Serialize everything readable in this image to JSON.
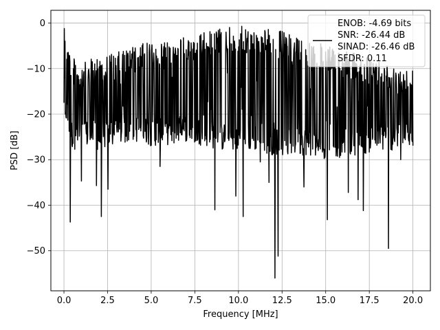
{
  "chart_data": {
    "type": "line",
    "xlabel": "Frequency [MHz]",
    "ylabel": "PSD [dB]",
    "xlim": [
      -0.75,
      21.0
    ],
    "ylim": [
      -58.8,
      2.8
    ],
    "xticks": [
      0.0,
      2.5,
      5.0,
      7.5,
      10.0,
      12.5,
      15.0,
      17.5,
      20.0
    ],
    "xtick_labels": [
      "0.0",
      "2.5",
      "5.0",
      "7.5",
      "10.0",
      "12.5",
      "15.0",
      "17.5",
      "20.0"
    ],
    "yticks": [
      0,
      -10,
      -20,
      -30,
      -40,
      -50
    ],
    "ytick_labels": [
      "0",
      "−10",
      "−20",
      "−30",
      "−40",
      "−50"
    ],
    "grid": true,
    "legend_position": "top-right",
    "series": [
      {
        "name": "",
        "color": "#000000",
        "description_points": {
          "x_range": [
            0.0,
            20.0
          ],
          "points_count": 1000,
          "upper_envelope": [
            [
              0.0,
              -1.2
            ],
            [
              0.5,
              -7.5
            ],
            [
              1.0,
              -9.0
            ],
            [
              2.0,
              -7.0
            ],
            [
              3.0,
              -6.5
            ],
            [
              4.0,
              -5.0
            ],
            [
              5.0,
              -4.0
            ],
            [
              6.0,
              -3.5
            ],
            [
              7.0,
              -3.0
            ],
            [
              8.0,
              -2.0
            ],
            [
              9.0,
              -1.0
            ],
            [
              10.0,
              -0.5
            ],
            [
              11.0,
              -1.5
            ],
            [
              12.0,
              -1.0
            ],
            [
              13.0,
              -2.5
            ],
            [
              14.0,
              -3.0
            ],
            [
              15.0,
              -5.0
            ],
            [
              16.0,
              -6.0
            ],
            [
              17.0,
              -7.0
            ],
            [
              18.0,
              -8.0
            ],
            [
              19.0,
              -9.5
            ],
            [
              20.0,
              -10.0
            ]
          ],
          "lower_envelope": [
            [
              0.0,
              -20.0
            ],
            [
              0.5,
              -28.0
            ],
            [
              1.0,
              -27.0
            ],
            [
              2.0,
              -28.0
            ],
            [
              3.0,
              -27.0
            ],
            [
              4.0,
              -26.0
            ],
            [
              5.0,
              -27.0
            ],
            [
              6.0,
              -27.0
            ],
            [
              7.0,
              -26.0
            ],
            [
              8.0,
              -27.0
            ],
            [
              9.0,
              -28.0
            ],
            [
              10.0,
              -28.0
            ],
            [
              11.0,
              -28.0
            ],
            [
              12.0,
              -29.0
            ],
            [
              13.0,
              -29.0
            ],
            [
              14.0,
              -29.0
            ],
            [
              15.0,
              -30.0
            ],
            [
              16.0,
              -29.0
            ],
            [
              17.0,
              -29.0
            ],
            [
              18.0,
              -28.0
            ],
            [
              19.0,
              -28.0
            ],
            [
              20.0,
              -28.0
            ]
          ],
          "notable_dips": [
            [
              0.37,
              -43.7
            ],
            [
              1.0,
              -34.7
            ],
            [
              1.87,
              -35.7
            ],
            [
              2.15,
              -42.5
            ],
            [
              2.52,
              -36.5
            ],
            [
              5.5,
              -31.5
            ],
            [
              8.65,
              -41.0
            ],
            [
              9.85,
              -38.0
            ],
            [
              10.28,
              -42.5
            ],
            [
              11.25,
              -30.5
            ],
            [
              11.75,
              -35.0
            ],
            [
              12.1,
              -56.0
            ],
            [
              12.28,
              -51.2
            ],
            [
              13.75,
              -36.0
            ],
            [
              15.1,
              -43.2
            ],
            [
              15.8,
              -29.5
            ],
            [
              16.3,
              -37.2
            ],
            [
              16.85,
              -38.8
            ],
            [
              17.15,
              -41.2
            ],
            [
              18.6,
              -49.5
            ],
            [
              19.3,
              -30.0
            ]
          ]
        }
      }
    ],
    "legend_entries": [
      "ENOB: -4.69 bits",
      "SNR: -26.44 dB",
      "SINAD: -26.46 dB",
      "SFDR: 0.11"
    ]
  }
}
